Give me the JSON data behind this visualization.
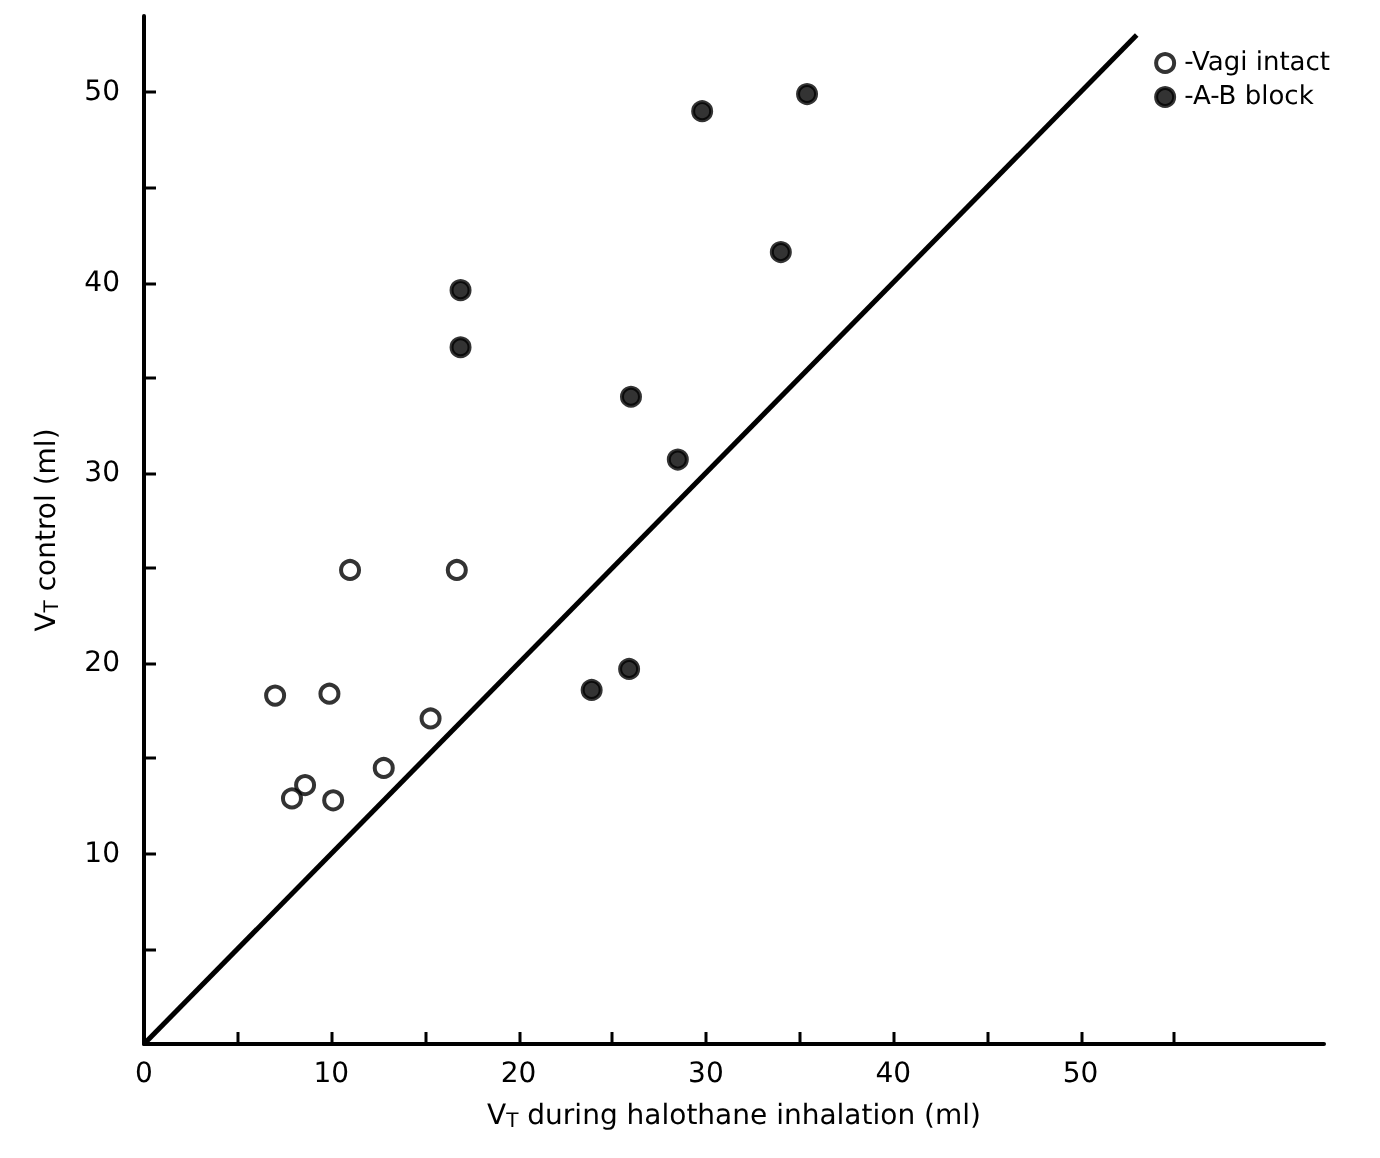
{
  "chart_data": {
    "type": "scatter",
    "xlabel": "V$_{T}$ during halothane inhalation (ml)",
    "ylabel": "V$_{T}$ control (ml)",
    "xlim": [
      0,
      63
    ],
    "ylim": [
      0,
      54
    ],
    "xticks": [
      {
        "value": 0,
        "label": "0"
      },
      {
        "value": 5,
        "label": null
      },
      10,
      {
        "value": 15,
        "label": null
      },
      20,
      {
        "value": 25,
        "label": null
      },
      30,
      {
        "value": 35,
        "label": null
      },
      40,
      {
        "value": 45,
        "label": null
      },
      50,
      {
        "value": 55,
        "label": null
      }
    ],
    "yticks": [
      {
        "value": 5,
        "label": null
      },
      10,
      {
        "value": 15,
        "label": null
      },
      20,
      {
        "value": 25,
        "label": null
      },
      30,
      {
        "value": 35,
        "label": null
      },
      40,
      {
        "value": 45,
        "label": null
      },
      50
    ],
    "grid": false,
    "legend": "top right",
    "series": [
      {
        "name": "-Vagi intact",
        "color": "#ffffff",
        "marker": "circle",
        "x": [
          7.0,
          9.9,
          11.0,
          16.7,
          15.3,
          12.8,
          8.6,
          7.9,
          10.1
        ],
        "values": [
          18.3,
          18.4,
          24.9,
          24.9,
          17.1,
          14.5,
          13.6,
          12.9,
          12.8
        ]
      },
      {
        "name": "-A-B block",
        "color": "#000000",
        "marker": "circle",
        "x": [
          29.8,
          35.4,
          34.0,
          16.9,
          16.9,
          26.0,
          28.5,
          25.9,
          23.9
        ],
        "values": [
          49.0,
          49.9,
          41.6,
          39.6,
          36.6,
          34.0,
          30.7,
          19.7,
          18.6
        ]
      },
      {
        "type": "line",
        "color": "#000000",
        "marker": "none",
        "line_style": "solid",
        "x": [
          0,
          53
        ],
        "values": [
          0,
          53
        ]
      }
    ]
  }
}
